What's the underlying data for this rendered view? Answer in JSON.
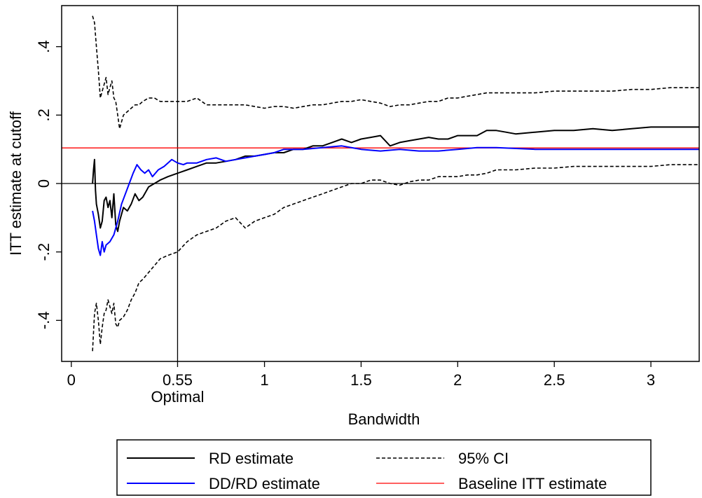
{
  "chart_data": {
    "type": "line",
    "xlabel": "Bandwidth",
    "ylabel": "ITT estimate at cutoff",
    "xlim": [
      -0.05,
      3.25
    ],
    "ylim": [
      -0.52,
      0.52
    ],
    "grid": false,
    "x_ticks": [
      {
        "value": 0,
        "label": "0"
      },
      {
        "value": 0.55,
        "label": "0.55"
      },
      {
        "value": 1,
        "label": "1"
      },
      {
        "value": 1.5,
        "label": "1.5"
      },
      {
        "value": 2,
        "label": "2"
      },
      {
        "value": 2.5,
        "label": "2.5"
      },
      {
        "value": 3,
        "label": "3"
      }
    ],
    "y_ticks": [
      {
        "value": -0.4,
        "label": "-.4"
      },
      {
        "value": -0.2,
        "label": "-.2"
      },
      {
        "value": 0,
        "label": "0"
      },
      {
        "value": 0.2,
        "label": ".2"
      },
      {
        "value": 0.4,
        "label": ".4"
      }
    ],
    "annotations": [
      {
        "text": "Optimal",
        "x": 0.55
      }
    ],
    "reference_lines": [
      {
        "orientation": "vertical",
        "x": 0.55,
        "color": "#000000"
      },
      {
        "orientation": "horizontal",
        "y": 0,
        "color": "#000000"
      }
    ],
    "legend_position": "bottom",
    "series": [
      {
        "name": "RD estimate",
        "color": "#000000",
        "dash": "solid",
        "x": [
          0.11,
          0.115,
          0.12,
          0.125,
          0.13,
          0.14,
          0.15,
          0.16,
          0.17,
          0.18,
          0.19,
          0.2,
          0.21,
          0.22,
          0.23,
          0.24,
          0.25,
          0.27,
          0.29,
          0.31,
          0.33,
          0.35,
          0.37,
          0.4,
          0.43,
          0.46,
          0.5,
          0.55,
          0.6,
          0.65,
          0.7,
          0.75,
          0.8,
          0.85,
          0.9,
          0.95,
          1.0,
          1.05,
          1.1,
          1.15,
          1.2,
          1.25,
          1.3,
          1.35,
          1.4,
          1.45,
          1.5,
          1.55,
          1.6,
          1.65,
          1.7,
          1.75,
          1.8,
          1.85,
          1.9,
          1.95,
          2.0,
          2.05,
          2.1,
          2.15,
          2.2,
          2.25,
          2.3,
          2.4,
          2.5,
          2.6,
          2.7,
          2.8,
          2.9,
          3.0,
          3.1,
          3.2,
          3.25
        ],
        "y": [
          0.0,
          0.04,
          0.07,
          -0.02,
          -0.06,
          -0.09,
          -0.13,
          -0.11,
          -0.05,
          -0.04,
          -0.07,
          -0.05,
          -0.1,
          -0.03,
          -0.12,
          -0.14,
          -0.11,
          -0.07,
          -0.08,
          -0.06,
          -0.03,
          -0.05,
          -0.04,
          -0.01,
          0.0,
          0.01,
          0.02,
          0.03,
          0.04,
          0.05,
          0.06,
          0.06,
          0.065,
          0.07,
          0.08,
          0.08,
          0.085,
          0.09,
          0.09,
          0.1,
          0.1,
          0.11,
          0.11,
          0.12,
          0.13,
          0.12,
          0.13,
          0.135,
          0.14,
          0.11,
          0.12,
          0.125,
          0.13,
          0.135,
          0.13,
          0.13,
          0.14,
          0.14,
          0.14,
          0.155,
          0.155,
          0.15,
          0.145,
          0.15,
          0.155,
          0.155,
          0.16,
          0.155,
          0.16,
          0.165,
          0.165,
          0.165,
          0.165
        ]
      },
      {
        "name": "DD/RD estimate",
        "color": "#0000ff",
        "dash": "solid",
        "x": [
          0.11,
          0.12,
          0.13,
          0.14,
          0.15,
          0.16,
          0.17,
          0.18,
          0.2,
          0.22,
          0.24,
          0.26,
          0.28,
          0.3,
          0.32,
          0.34,
          0.36,
          0.38,
          0.4,
          0.42,
          0.45,
          0.48,
          0.5,
          0.52,
          0.55,
          0.58,
          0.6,
          0.65,
          0.7,
          0.75,
          0.8,
          0.85,
          0.9,
          0.95,
          1.0,
          1.05,
          1.1,
          1.2,
          1.3,
          1.4,
          1.5,
          1.6,
          1.7,
          1.8,
          1.9,
          2.0,
          2.1,
          2.2,
          2.4,
          2.6,
          2.8,
          3.0,
          3.25
        ],
        "y": [
          -0.08,
          -0.11,
          -0.15,
          -0.19,
          -0.21,
          -0.17,
          -0.2,
          -0.18,
          -0.17,
          -0.15,
          -0.11,
          -0.06,
          -0.03,
          0.0,
          0.03,
          0.055,
          0.04,
          0.03,
          0.04,
          0.02,
          0.04,
          0.05,
          0.06,
          0.07,
          0.06,
          0.055,
          0.06,
          0.06,
          0.07,
          0.075,
          0.065,
          0.07,
          0.075,
          0.08,
          0.085,
          0.09,
          0.1,
          0.1,
          0.105,
          0.11,
          0.1,
          0.095,
          0.1,
          0.095,
          0.095,
          0.1,
          0.105,
          0.105,
          0.1,
          0.1,
          0.1,
          0.1,
          0.1
        ]
      },
      {
        "name": "95% CI",
        "color": "#000000",
        "dash": "dashed",
        "x": [
          0.11,
          0.12,
          0.13,
          0.14,
          0.15,
          0.16,
          0.17,
          0.18,
          0.19,
          0.2,
          0.21,
          0.22,
          0.23,
          0.24,
          0.25,
          0.27,
          0.29,
          0.31,
          0.33,
          0.35,
          0.37,
          0.4,
          0.43,
          0.46,
          0.5,
          0.55,
          0.6,
          0.65,
          0.7,
          0.75,
          0.8,
          0.85,
          0.9,
          0.95,
          1.0,
          1.05,
          1.1,
          1.15,
          1.2,
          1.25,
          1.3,
          1.35,
          1.4,
          1.45,
          1.5,
          1.55,
          1.6,
          1.65,
          1.7,
          1.75,
          1.8,
          1.85,
          1.9,
          1.95,
          2.0,
          2.05,
          2.1,
          2.15,
          2.2,
          2.3,
          2.4,
          2.5,
          2.6,
          2.7,
          2.8,
          2.9,
          3.0,
          3.1,
          3.2,
          3.25
        ],
        "y": [
          0.49,
          0.47,
          0.4,
          0.33,
          0.25,
          0.27,
          0.29,
          0.31,
          0.26,
          0.28,
          0.3,
          0.25,
          0.24,
          0.2,
          0.16,
          0.2,
          0.21,
          0.22,
          0.23,
          0.23,
          0.24,
          0.25,
          0.25,
          0.24,
          0.24,
          0.24,
          0.24,
          0.25,
          0.23,
          0.23,
          0.23,
          0.23,
          0.23,
          0.225,
          0.22,
          0.225,
          0.225,
          0.22,
          0.225,
          0.23,
          0.23,
          0.235,
          0.24,
          0.24,
          0.245,
          0.24,
          0.235,
          0.225,
          0.23,
          0.23,
          0.235,
          0.24,
          0.24,
          0.25,
          0.25,
          0.255,
          0.26,
          0.265,
          0.265,
          0.265,
          0.265,
          0.27,
          0.27,
          0.27,
          0.27,
          0.275,
          0.275,
          0.28,
          0.28,
          0.28
        ]
      },
      {
        "name": "95% CI",
        "color": "#000000",
        "dash": "dashed",
        "x": [
          0.11,
          0.12,
          0.13,
          0.14,
          0.15,
          0.16,
          0.17,
          0.18,
          0.19,
          0.2,
          0.21,
          0.22,
          0.23,
          0.24,
          0.25,
          0.27,
          0.29,
          0.31,
          0.33,
          0.35,
          0.37,
          0.4,
          0.43,
          0.46,
          0.5,
          0.55,
          0.6,
          0.65,
          0.7,
          0.75,
          0.8,
          0.85,
          0.9,
          0.95,
          1.0,
          1.05,
          1.1,
          1.15,
          1.2,
          1.25,
          1.3,
          1.35,
          1.4,
          1.45,
          1.5,
          1.55,
          1.6,
          1.65,
          1.7,
          1.75,
          1.8,
          1.85,
          1.9,
          1.95,
          2.0,
          2.05,
          2.1,
          2.15,
          2.2,
          2.3,
          2.4,
          2.5,
          2.6,
          2.7,
          2.8,
          2.9,
          3.0,
          3.1,
          3.2,
          3.25
        ],
        "y": [
          -0.49,
          -0.38,
          -0.35,
          -0.4,
          -0.47,
          -0.42,
          -0.38,
          -0.37,
          -0.34,
          -0.36,
          -0.38,
          -0.35,
          -0.41,
          -0.42,
          -0.4,
          -0.39,
          -0.37,
          -0.34,
          -0.32,
          -0.29,
          -0.28,
          -0.26,
          -0.24,
          -0.22,
          -0.21,
          -0.2,
          -0.17,
          -0.15,
          -0.14,
          -0.13,
          -0.11,
          -0.1,
          -0.13,
          -0.11,
          -0.1,
          -0.09,
          -0.07,
          -0.06,
          -0.05,
          -0.04,
          -0.03,
          -0.02,
          -0.01,
          0.0,
          0.0,
          0.01,
          0.01,
          0.0,
          -0.005,
          0.005,
          0.01,
          0.01,
          0.02,
          0.02,
          0.02,
          0.025,
          0.025,
          0.03,
          0.04,
          0.04,
          0.045,
          0.045,
          0.05,
          0.05,
          0.05,
          0.05,
          0.05,
          0.055,
          0.055,
          0.055
        ]
      },
      {
        "name": "Baseline ITT estimate",
        "color": "#ff0000",
        "dash": "solid",
        "x": [
          -0.05,
          3.25
        ],
        "y": [
          0.104,
          0.104
        ]
      }
    ],
    "legend": [
      {
        "label": "RD estimate",
        "color": "#000000",
        "dash": "solid"
      },
      {
        "label": "95% CI",
        "color": "#000000",
        "dash": "dashed"
      },
      {
        "label": "DD/RD estimate",
        "color": "#0000ff",
        "dash": "solid"
      },
      {
        "label": "Baseline ITT estimate",
        "color": "#ff0000",
        "dash": "solid"
      }
    ]
  }
}
